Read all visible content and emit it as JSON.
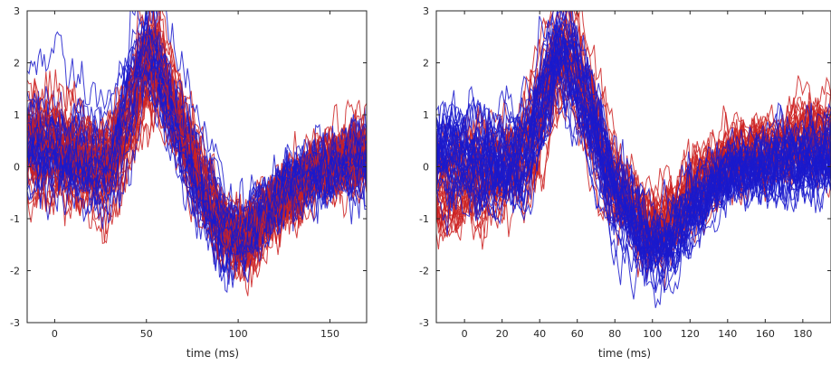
{
  "chart_data": [
    {
      "type": "line",
      "title": "",
      "xlabel": "time (ms)",
      "ylabel": "",
      "xlim": [
        -15,
        170
      ],
      "ylim": [
        -3,
        3
      ],
      "xticks": [
        0,
        50,
        100,
        150
      ],
      "xtick_labels": [
        "0",
        "50",
        "100",
        "150"
      ],
      "yticks": [
        -3,
        -2,
        -1,
        0,
        1,
        2,
        3
      ],
      "ytick_labels": [
        "-3",
        "-2",
        "-1",
        "0",
        "1",
        "2",
        "3"
      ],
      "grid": false,
      "legend": "none",
      "series_colors": {
        "group_a": "#cc2222",
        "group_b": "#1a1acc"
      },
      "template": {
        "times": [
          -15,
          0,
          20,
          30,
          40,
          48,
          55,
          65,
          80,
          95,
          105,
          120,
          140,
          170
        ],
        "group_a_mean": [
          0.4,
          0.3,
          0.0,
          -0.1,
          0.6,
          1.7,
          2.0,
          1.2,
          -0.3,
          -1.3,
          -1.4,
          -0.8,
          -0.1,
          0.3
        ],
        "group_b_mean": [
          0.5,
          0.4,
          0.1,
          0.0,
          0.9,
          2.2,
          2.1,
          1.0,
          -0.4,
          -1.3,
          -1.3,
          -0.7,
          -0.1,
          0.1
        ],
        "group_a_count": 35,
        "group_b_count": 35,
        "spread": 0.6
      }
    },
    {
      "type": "line",
      "title": "",
      "xlabel": "time (ms)",
      "ylabel": "",
      "xlim": [
        -15,
        195
      ],
      "ylim": [
        -3,
        3
      ],
      "xticks": [
        0,
        20,
        40,
        60,
        80,
        100,
        120,
        140,
        160,
        180
      ],
      "xtick_labels": [
        "0",
        "20",
        "40",
        "60",
        "80",
        "100",
        "120",
        "140",
        "160",
        "180"
      ],
      "yticks": [
        -3,
        -2,
        -1,
        0,
        1,
        2,
        3
      ],
      "ytick_labels": [
        "-3",
        "-2",
        "-1",
        "0",
        "1",
        "2",
        "3"
      ],
      "grid": false,
      "legend": "none",
      "series_colors": {
        "group_a": "#cc2222",
        "group_b": "#1a1acc"
      },
      "template": {
        "times": [
          -15,
          0,
          20,
          30,
          40,
          48,
          55,
          65,
          80,
          95,
          105,
          120,
          140,
          195
        ],
        "group_a_mean": [
          -0.5,
          -0.3,
          -0.1,
          0.1,
          0.8,
          1.9,
          2.2,
          1.3,
          -0.4,
          -1.1,
          -1.2,
          -0.5,
          0.2,
          0.6
        ],
        "group_b_mean": [
          0.3,
          0.2,
          0.0,
          0.1,
          1.0,
          2.3,
          2.2,
          1.1,
          -0.5,
          -1.4,
          -1.6,
          -0.9,
          -0.1,
          0.2
        ],
        "group_a_count": 35,
        "group_b_count": 35,
        "spread": 0.6
      }
    }
  ]
}
